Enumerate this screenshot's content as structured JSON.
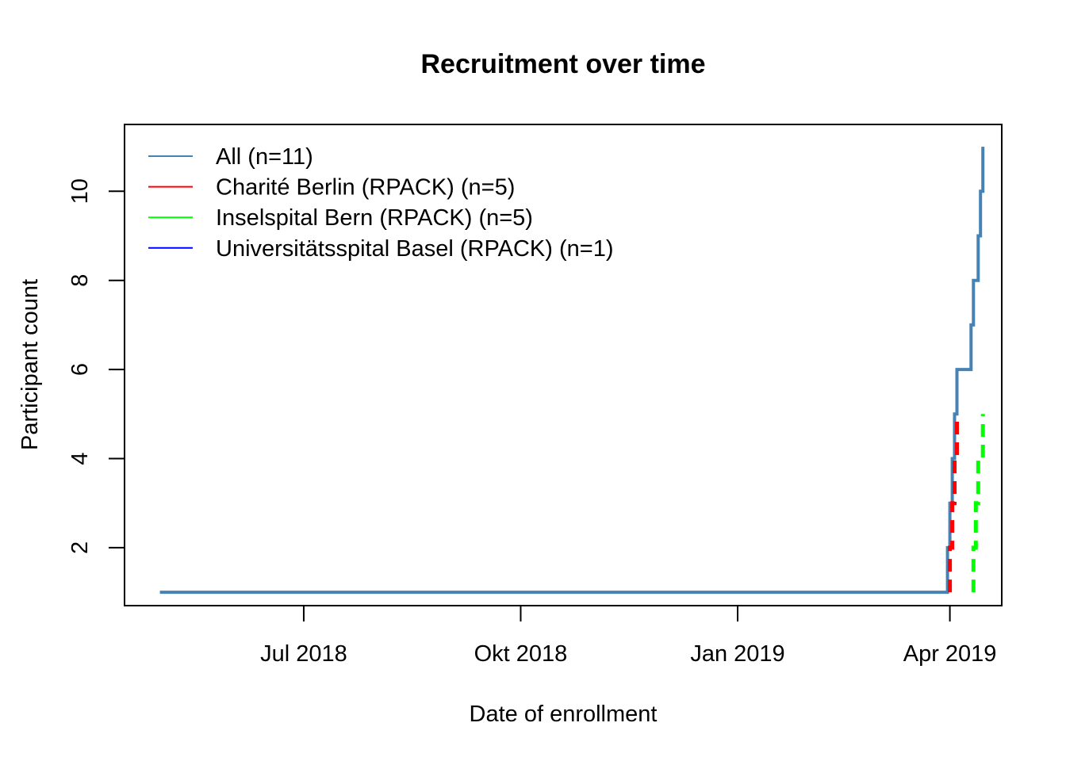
{
  "chart_data": {
    "type": "line",
    "title": "Recruitment over time",
    "xlabel": "Date of enrollment",
    "ylabel": "Participant count",
    "x_axis_kind": "date",
    "xlim": [
      "2018-04-16",
      "2019-04-23"
    ],
    "ylim": [
      0.7,
      11.5
    ],
    "x_ticks": [
      {
        "date": "2018-07-01",
        "label": "Jul 2018"
      },
      {
        "date": "2018-10-01",
        "label": "Okt 2018"
      },
      {
        "date": "2019-01-01",
        "label": "Jan 2019"
      },
      {
        "date": "2019-04-01",
        "label": "Apr 2019"
      }
    ],
    "y_ticks": [
      2,
      4,
      6,
      8,
      10
    ],
    "grid": false,
    "legend_position": "top-left",
    "series": [
      {
        "name": "All (n=11)",
        "color": "#4682B4",
        "style": "solid",
        "step": true,
        "points": [
          {
            "x": "2018-05-01",
            "y": 1
          },
          {
            "x": "2019-03-31",
            "y": 1
          },
          {
            "x": "2019-03-31",
            "y": 2
          },
          {
            "x": "2019-04-01",
            "y": 2
          },
          {
            "x": "2019-04-01",
            "y": 3
          },
          {
            "x": "2019-04-02",
            "y": 3
          },
          {
            "x": "2019-04-02",
            "y": 4
          },
          {
            "x": "2019-04-03",
            "y": 4
          },
          {
            "x": "2019-04-03",
            "y": 5
          },
          {
            "x": "2019-04-04",
            "y": 5
          },
          {
            "x": "2019-04-04",
            "y": 6
          },
          {
            "x": "2019-04-10",
            "y": 6
          },
          {
            "x": "2019-04-10",
            "y": 7
          },
          {
            "x": "2019-04-11",
            "y": 7
          },
          {
            "x": "2019-04-11",
            "y": 8
          },
          {
            "x": "2019-04-13",
            "y": 8
          },
          {
            "x": "2019-04-13",
            "y": 9
          },
          {
            "x": "2019-04-14",
            "y": 9
          },
          {
            "x": "2019-04-14",
            "y": 10
          },
          {
            "x": "2019-04-15",
            "y": 10
          },
          {
            "x": "2019-04-15",
            "y": 11
          }
        ]
      },
      {
        "name": "Charité Berlin (RPACK) (n=5)",
        "color": "#FF0000",
        "style": "dashed",
        "step": true,
        "points": [
          {
            "x": "2019-04-01",
            "y": 1
          },
          {
            "x": "2019-04-01",
            "y": 2
          },
          {
            "x": "2019-04-02",
            "y": 2
          },
          {
            "x": "2019-04-02",
            "y": 3
          },
          {
            "x": "2019-04-03",
            "y": 3
          },
          {
            "x": "2019-04-03",
            "y": 4
          },
          {
            "x": "2019-04-04",
            "y": 4
          },
          {
            "x": "2019-04-04",
            "y": 5
          }
        ]
      },
      {
        "name": "Inselspital Bern (RPACK) (n=5)",
        "color": "#00FF00",
        "style": "dashed",
        "step": true,
        "points": [
          {
            "x": "2019-04-11",
            "y": 1
          },
          {
            "x": "2019-04-11",
            "y": 2
          },
          {
            "x": "2019-04-12",
            "y": 2
          },
          {
            "x": "2019-04-12",
            "y": 3
          },
          {
            "x": "2019-04-13",
            "y": 3
          },
          {
            "x": "2019-04-13",
            "y": 4
          },
          {
            "x": "2019-04-15",
            "y": 4
          },
          {
            "x": "2019-04-15",
            "y": 5
          }
        ]
      },
      {
        "name": "Universitätsspital Basel (RPACK) (n=1)",
        "color": "#0000FF",
        "style": "dashed",
        "step": true,
        "points": []
      }
    ]
  }
}
